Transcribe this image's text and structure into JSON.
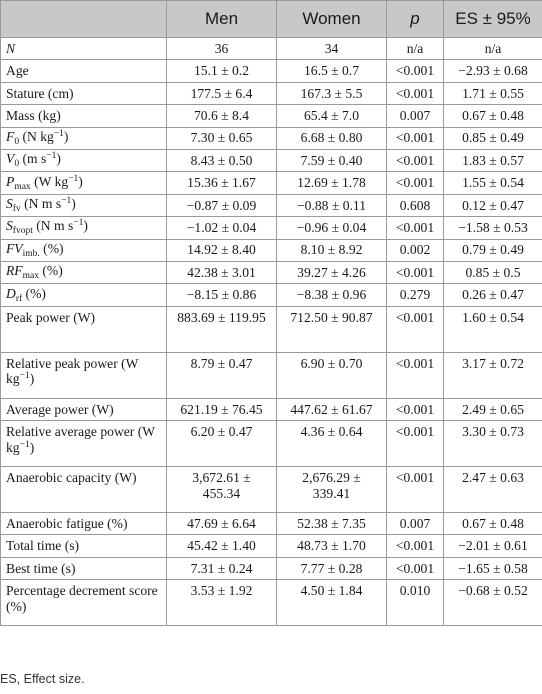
{
  "headers": [
    "",
    "Men",
    "Women",
    "p",
    "ES ± 95%"
  ],
  "rows": [
    {
      "label": "N",
      "men": "36",
      "women": "34",
      "p": "n/a",
      "es": "n/a"
    },
    {
      "label": "Age",
      "men": "15.1 ± 0.2",
      "women": "16.5 ± 0.7",
      "p": "<0.001",
      "es": "−2.93 ± 0.68"
    },
    {
      "label": "Stature (cm)",
      "men": "177.5 ± 6.4",
      "women": "167.3 ± 5.5",
      "p": "<0.001",
      "es": "1.71 ± 0.55"
    },
    {
      "label": "Mass (kg)",
      "men": "70.6 ± 8.4",
      "women": "65.4 ± 7.0",
      "p": "0.007",
      "es": "0.67 ± 0.48"
    },
    {
      "label": "F0 (N kg−1)",
      "men": "7.30 ± 0.65",
      "women": "6.68 ± 0.80",
      "p": "<0.001",
      "es": "0.85 ± 0.49"
    },
    {
      "label": "V0 (m s−1)",
      "men": "8.43 ± 0.50",
      "women": "7.59 ± 0.40",
      "p": "<0.001",
      "es": "1.83 ± 0.57"
    },
    {
      "label": "Pmax (W kg−1)",
      "men": "15.36 ± 1.67",
      "women": "12.69 ± 1.78",
      "p": "<0.001",
      "es": "1.55 ± 0.54"
    },
    {
      "label": "Sfv (N m s−1)",
      "men": "−0.87 ± 0.09",
      "women": "−0.88 ± 0.11",
      "p": "0.608",
      "es": "0.12 ± 0.47"
    },
    {
      "label": "Sfvopt (N m s−1)",
      "men": "−1.02 ± 0.04",
      "women": "−0.96 ± 0.04",
      "p": "<0.001",
      "es": "−1.58 ± 0.53"
    },
    {
      "label": "FVimb. (%)",
      "men": "14.92 ± 8.40",
      "women": "8.10 ± 8.92",
      "p": "0.002",
      "es": "0.79 ± 0.49"
    },
    {
      "label": "RFmax (%)",
      "men": "42.38 ± 3.01",
      "women": "39.27 ± 4.26",
      "p": "<0.001",
      "es": "0.85 ± 0.5"
    },
    {
      "label": "Drf (%)",
      "men": "−8.15 ± 0.86",
      "women": "−8.38 ± 0.96",
      "p": "0.279",
      "es": "0.26 ± 0.47"
    },
    {
      "label": "Peak power (W)",
      "men": "883.69 ± 119.95",
      "women": "712.50 ± 90.87",
      "p": "<0.001",
      "es": "1.60 ± 0.54"
    },
    {
      "label": "Relative peak power (W kg−1)",
      "men": "8.79 ± 0.47",
      "women": "6.90 ± 0.70",
      "p": "<0.001",
      "es": "3.17 ± 0.72"
    },
    {
      "label": "Average power (W)",
      "men": "621.19 ± 76.45",
      "women": "447.62 ± 61.67",
      "p": "<0.001",
      "es": "2.49 ± 0.65"
    },
    {
      "label": "Relative average power (W kg−1)",
      "men": "6.20 ± 0.47",
      "women": "4.36 ± 0.64",
      "p": "<0.001",
      "es": "3.30 ± 0.73"
    },
    {
      "label": "Anaerobic capacity (W)",
      "men": "3,672.61 ± 455.34",
      "women": "2,676.29 ± 339.41",
      "p": "<0.001",
      "es": "2.47 ± 0.63"
    },
    {
      "label": "Anaerobic fatigue (%)",
      "men": "47.69 ± 6.64",
      "women": "52.38 ± 7.35",
      "p": "0.007",
      "es": "0.67 ± 0.48"
    },
    {
      "label": "Total time (s)",
      "men": "45.42 ± 1.40",
      "women": "48.73 ± 1.70",
      "p": "<0.001",
      "es": "−2.01 ± 0.61"
    },
    {
      "label": "Best time (s)",
      "men": "7.31 ± 0.24",
      "women": "7.77 ± 0.28",
      "p": "<0.001",
      "es": "−1.65 ± 0.58"
    },
    {
      "label": "Percentage decrement score (%)",
      "men": "3.53 ± 1.92",
      "women": "4.50 ± 1.84",
      "p": "0.010",
      "es": "−0.68 ± 0.52"
    }
  ],
  "footnote": "ES, Effect size."
}
